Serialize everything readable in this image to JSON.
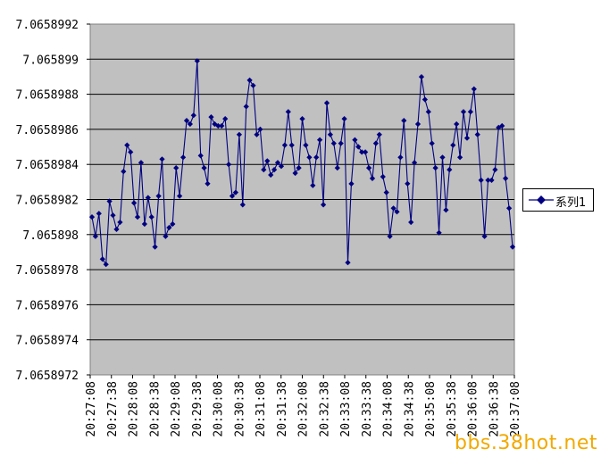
{
  "chart_data": {
    "type": "line",
    "title": "",
    "xlabel": "",
    "ylabel": "",
    "ylim": [
      7.0658972,
      7.0658992
    ],
    "y_ticks": [
      "7.0658992",
      "7.065899",
      "7.0658988",
      "7.0658986",
      "7.0658984",
      "7.0658982",
      "7.065898",
      "7.0658978",
      "7.0658976",
      "7.0658974",
      "7.0658972"
    ],
    "x_ticks": [
      "20:27:08",
      "20:27:38",
      "20:28:08",
      "20:28:38",
      "20:29:08",
      "20:29:38",
      "20:30:08",
      "20:30:38",
      "20:31:08",
      "20:31:38",
      "20:32:08",
      "20:32:38",
      "20:33:08",
      "20:33:38",
      "20:34:08",
      "20:34:38",
      "20:35:08",
      "20:35:38",
      "20:36:08",
      "20:36:38",
      "20:37:08"
    ],
    "grid": "horizontal",
    "legend_position": "right",
    "series": [
      {
        "name": "系列1",
        "color": "#000080",
        "values": [
          7.0658981,
          7.06589799,
          7.06589812,
          7.06589786,
          7.06589783,
          7.06589819,
          7.06589811,
          7.06589803,
          7.06589807,
          7.06589836,
          7.06589851,
          7.06589847,
          7.06589818,
          7.0658981,
          7.06589841,
          7.06589806,
          7.06589821,
          7.0658981,
          7.06589793,
          7.06589822,
          7.06589843,
          7.06589799,
          7.06589804,
          7.06589806,
          7.06589838,
          7.06589822,
          7.06589844,
          7.06589865,
          7.06589863,
          7.06589868,
          7.06589899,
          7.06589845,
          7.06589838,
          7.06589829,
          7.06589867,
          7.06589863,
          7.06589862,
          7.06589862,
          7.06589866,
          7.0658984,
          7.06589822,
          7.06589824,
          7.06589857,
          7.06589817,
          7.06589873,
          7.06589888,
          7.06589885,
          7.06589857,
          7.0658986,
          7.06589837,
          7.06589842,
          7.06589834,
          7.06589837,
          7.06589841,
          7.06589839,
          7.06589851,
          7.0658987,
          7.06589851,
          7.06589835,
          7.06589838,
          7.06589866,
          7.06589851,
          7.06589844,
          7.06589828,
          7.06589844,
          7.06589854,
          7.06589817,
          7.06589875,
          7.06589857,
          7.06589852,
          7.06589838,
          7.06589852,
          7.06589866,
          7.06589784,
          7.06589829,
          7.06589854,
          7.0658985,
          7.06589847,
          7.06589847,
          7.06589838,
          7.06589832,
          7.06589852,
          7.06589857,
          7.06589833,
          7.06589824,
          7.06589799,
          7.06589815,
          7.06589813,
          7.06589844,
          7.06589865,
          7.06589829,
          7.06589807,
          7.06589841,
          7.06589863,
          7.0658989,
          7.06589877,
          7.0658987,
          7.06589852,
          7.06589838,
          7.06589801,
          7.06589844,
          7.06589814,
          7.06589837,
          7.06589851,
          7.06589863,
          7.06589844,
          7.0658987,
          7.06589855,
          7.0658987,
          7.06589883,
          7.06589857,
          7.06589831,
          7.06589799,
          7.06589831,
          7.06589831,
          7.06589837,
          7.06589861,
          7.06589862,
          7.06589832,
          7.06589815,
          7.06589793
        ]
      }
    ]
  },
  "legend": {
    "label": "系列1"
  },
  "watermark": {
    "text": "bbs.38hot.net",
    "color": "#f2a900"
  }
}
